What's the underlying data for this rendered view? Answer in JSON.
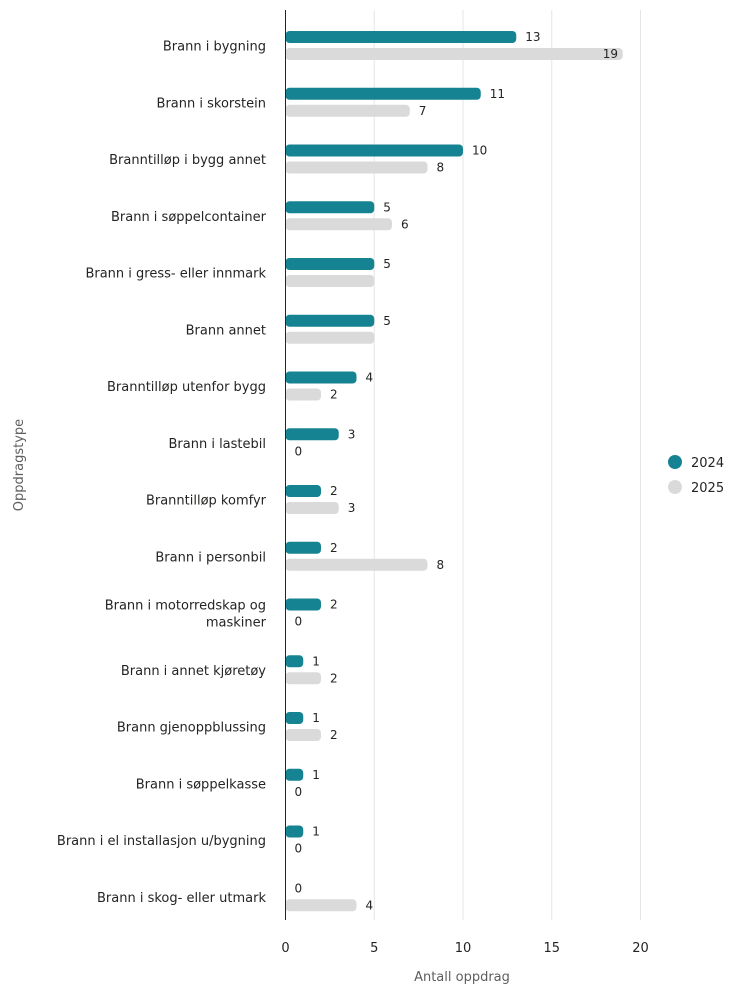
{
  "chart_data": {
    "type": "bar",
    "orientation": "horizontal",
    "categories": [
      "Brann i bygning",
      "Brann i skorstein",
      "Branntilløp i bygg annet",
      "Brann i søppelcontainer",
      "Brann i gress- eller innmark",
      "Brann annet",
      "Branntilløp utenfor bygg",
      "Brann i lastebil",
      "Branntilløp komfyr",
      "Brann i personbil",
      "Brann i motorredskap og maskiner",
      "Brann i annet kjøretøy",
      "Brann gjenoppblussing",
      "Brann i søppelkasse",
      "Brann i el installasjon u/bygning",
      "Brann i skog- eller utmark"
    ],
    "series": [
      {
        "name": "2024",
        "color": "#168392",
        "values": [
          13,
          11,
          10,
          5,
          5,
          5,
          4,
          3,
          2,
          2,
          2,
          1,
          1,
          1,
          1,
          0
        ],
        "labels": [
          "13",
          "11",
          "10",
          "5",
          "5",
          "5",
          "4",
          "3",
          "2",
          "2",
          "2",
          "1",
          "1",
          "1",
          "1",
          "0"
        ]
      },
      {
        "name": "2025",
        "color": "#dadada",
        "values": [
          19,
          7,
          8,
          6,
          5,
          5,
          2,
          0,
          3,
          8,
          0,
          2,
          2,
          0,
          0,
          4
        ],
        "labels": [
          "19",
          "7",
          "8",
          "6",
          "",
          "",
          "2",
          "0",
          "3",
          "8",
          "0",
          "2",
          "2",
          "0",
          "0",
          "4"
        ]
      }
    ],
    "xlabel": "Antall oppdrag",
    "ylabel": "Oppdragstype",
    "xlim": [
      0,
      20
    ],
    "xticks": [
      "0",
      "5",
      "10",
      "15",
      "20"
    ],
    "grid": true,
    "legend": "right"
  }
}
